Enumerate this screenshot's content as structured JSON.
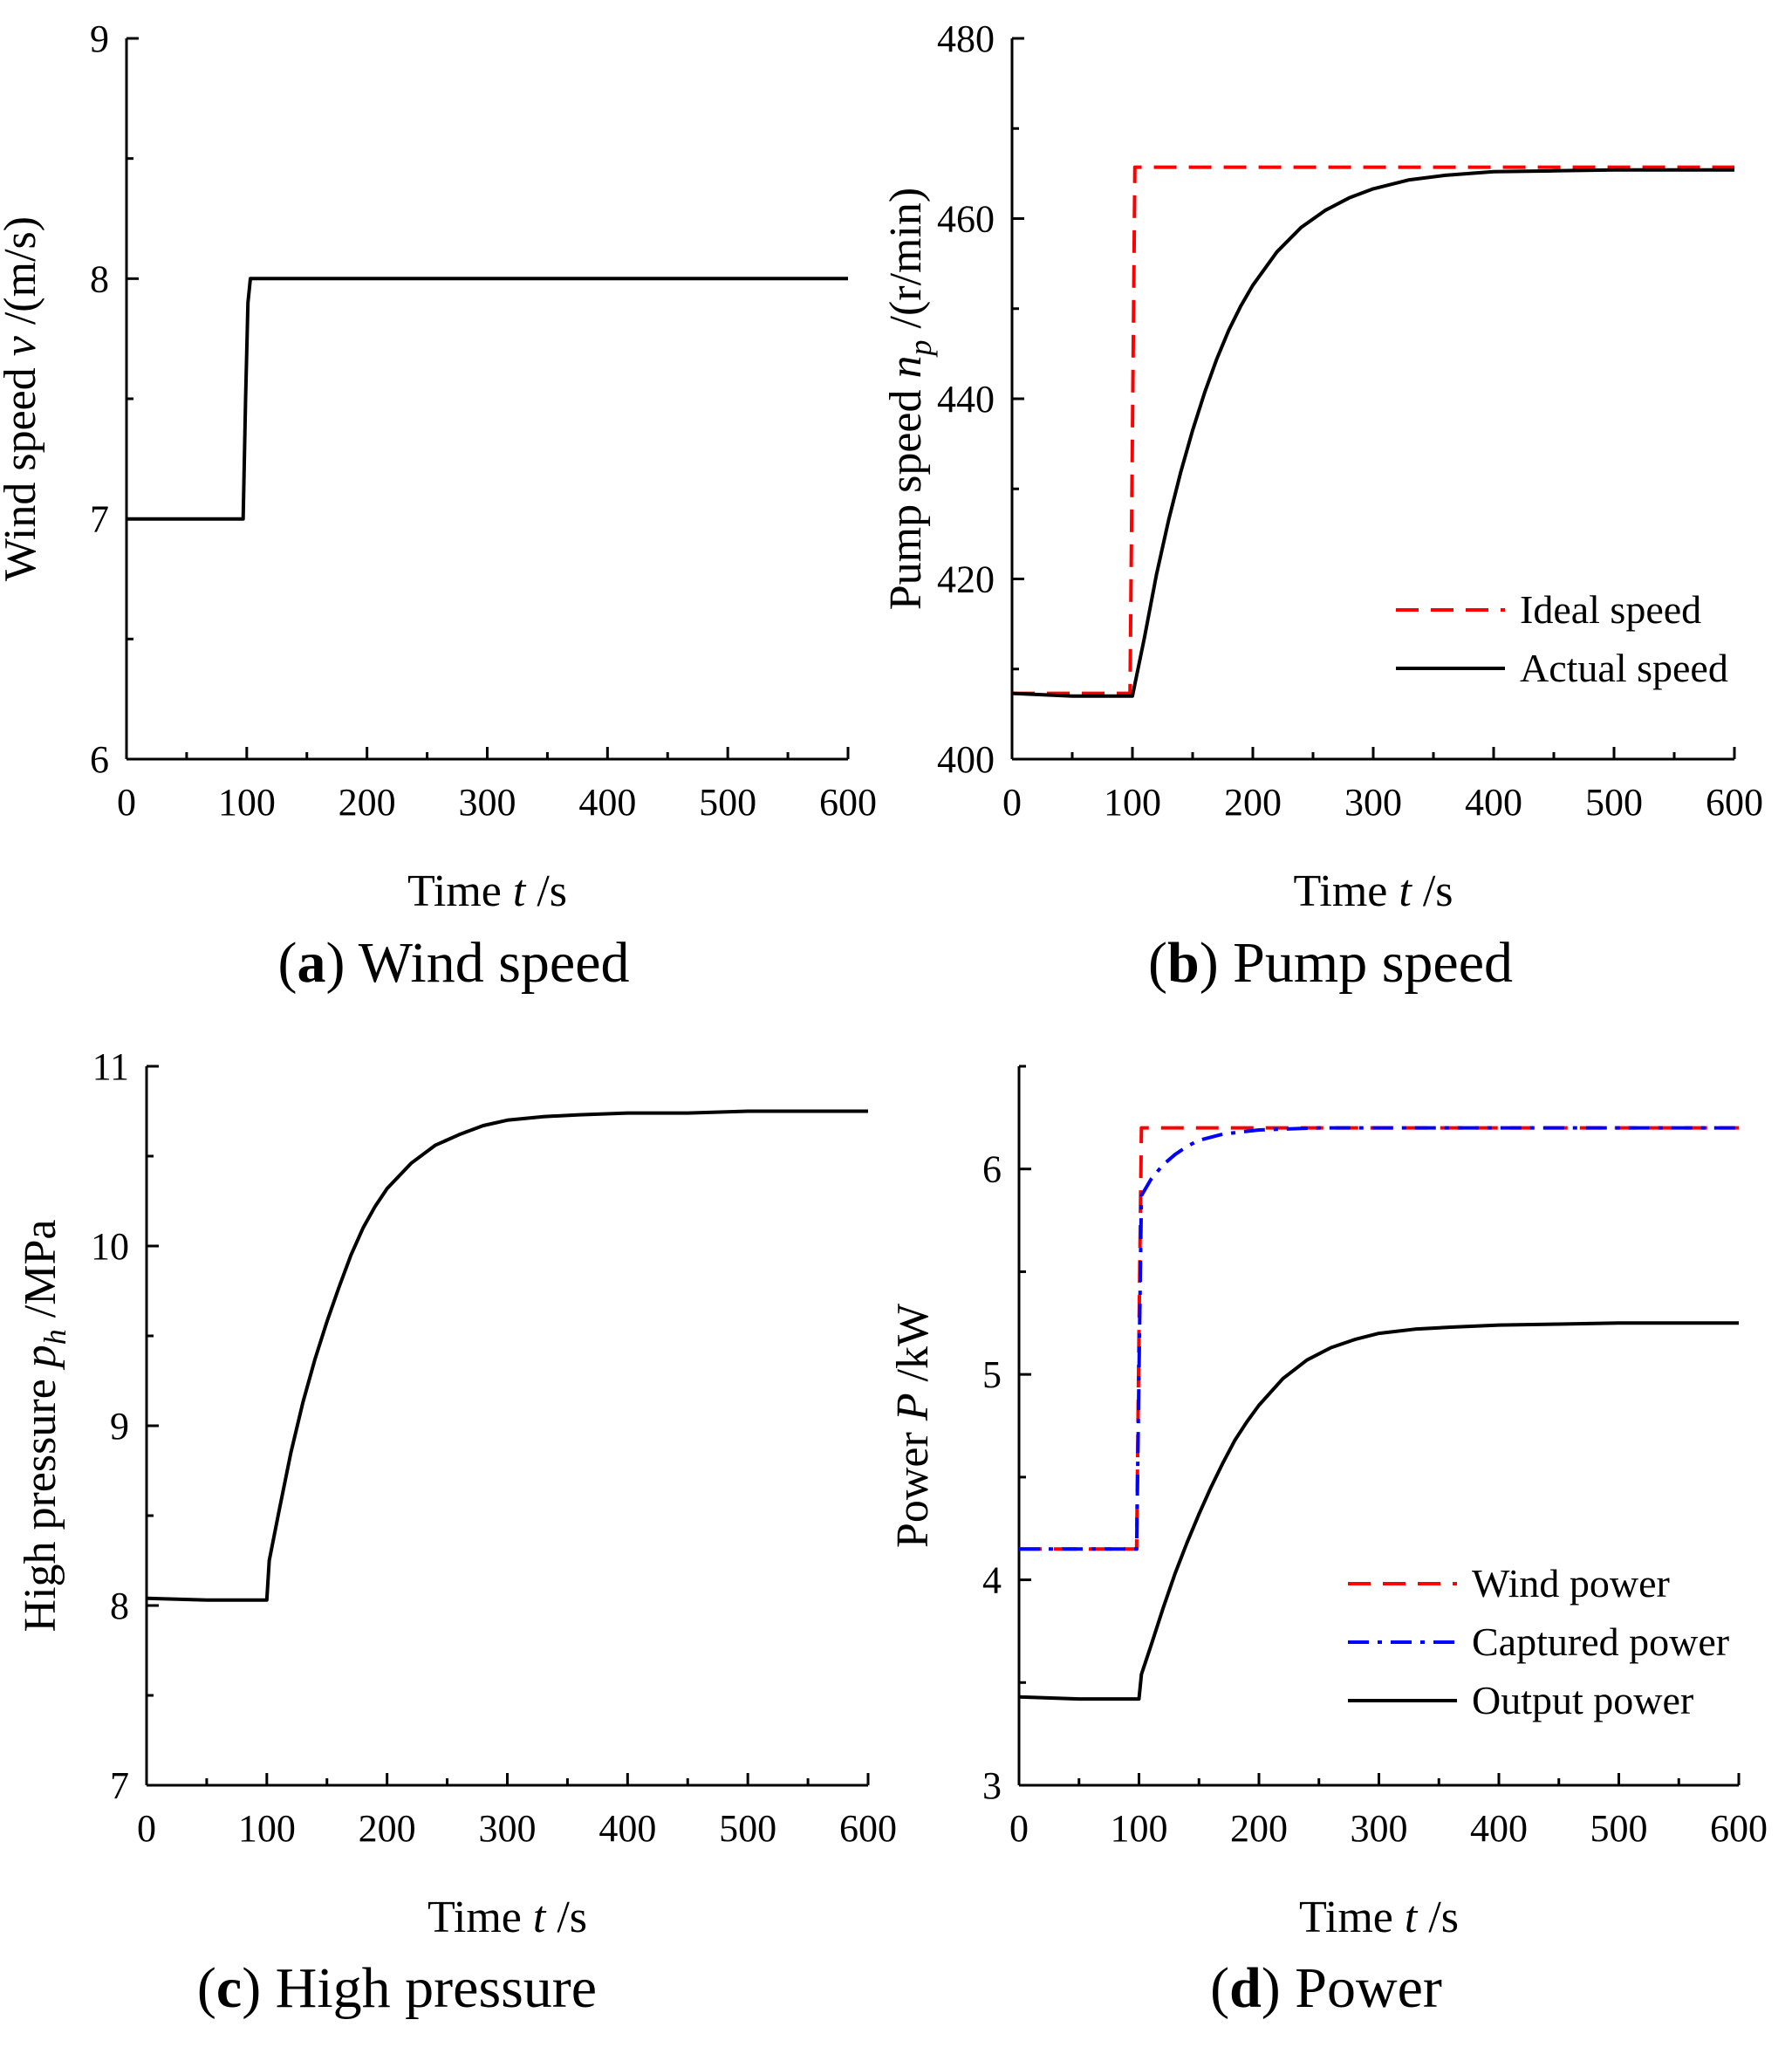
{
  "chart_data": [
    {
      "id": "a",
      "type": "line",
      "caption_letter": "a",
      "caption_text": "Wind speed",
      "xlabel": {
        "pre": "Time ",
        "var": "t",
        "post": " /s"
      },
      "ylabel": {
        "pre": "Wind speed ",
        "var": "v",
        "sub": "",
        "post": " /(m/s)"
      },
      "xlim": [
        0,
        600
      ],
      "ylim": [
        6,
        9
      ],
      "xticks": [
        0,
        100,
        200,
        300,
        400,
        500,
        600
      ],
      "yticks": [
        6,
        7,
        8,
        9
      ],
      "xtick_labels": [
        "0",
        "100",
        "200",
        "300",
        "400",
        "500",
        "600"
      ],
      "ytick_labels": [
        "6",
        "7",
        "8",
        "9"
      ],
      "legend": [],
      "series": [
        {
          "name": "Wind speed",
          "color": "#000000",
          "dash": "solid",
          "x": [
            0,
            97,
            99,
            101,
            103,
            600
          ],
          "y": [
            7.0,
            7.0,
            7.5,
            7.9,
            8.0,
            8.0
          ]
        }
      ]
    },
    {
      "id": "b",
      "type": "line",
      "caption_letter": "b",
      "caption_text": "Pump speed",
      "xlabel": {
        "pre": "Time ",
        "var": "t",
        "post": " /s"
      },
      "ylabel": {
        "pre": "Pump speed ",
        "var": "n",
        "sub": "p",
        "post": " /(r/min)"
      },
      "xlim": [
        0,
        600
      ],
      "ylim": [
        400,
        480
      ],
      "xticks": [
        0,
        100,
        200,
        300,
        400,
        500,
        600
      ],
      "yticks": [
        400,
        420,
        440,
        460,
        480
      ],
      "xtick_labels": [
        "0",
        "100",
        "200",
        "300",
        "400",
        "500",
        "600"
      ],
      "ytick_labels": [
        "400",
        "420",
        "440",
        "460",
        "480"
      ],
      "legend": [
        "Ideal speed",
        "Actual speed"
      ],
      "series": [
        {
          "name": "Ideal speed",
          "color": "#ff0000",
          "dash": "dashed",
          "x": [
            0,
            98,
            100,
            102,
            600
          ],
          "y": [
            407.3,
            407.3,
            436,
            465.7,
            465.7
          ]
        },
        {
          "name": "Actual speed",
          "color": "#000000",
          "dash": "solid",
          "x": [
            0,
            50,
            100,
            110,
            120,
            130,
            140,
            150,
            160,
            170,
            180,
            190,
            200,
            220,
            240,
            260,
            280,
            300,
            330,
            360,
            400,
            450,
            500,
            550,
            600
          ],
          "y": [
            407.3,
            407.0,
            407.0,
            413.5,
            420.5,
            426.5,
            431.8,
            436.5,
            440.7,
            444.4,
            447.6,
            450.3,
            452.6,
            456.3,
            459.0,
            460.9,
            462.3,
            463.3,
            464.3,
            464.8,
            465.2,
            465.3,
            465.4,
            465.4,
            465.4
          ]
        }
      ]
    },
    {
      "id": "c",
      "type": "line",
      "caption_letter": "c",
      "caption_text": "High pressure",
      "xlabel": {
        "pre": "Time ",
        "var": "t",
        "post": " /s"
      },
      "ylabel": {
        "pre": "High pressure ",
        "var": "p",
        "sub": "h",
        "post": " /MPa"
      },
      "xlim": [
        0,
        600
      ],
      "ylim": [
        7,
        11
      ],
      "xticks": [
        0,
        100,
        200,
        300,
        400,
        500,
        600
      ],
      "yticks": [
        7,
        8,
        9,
        10,
        11
      ],
      "xtick_labels": [
        "0",
        "100",
        "200",
        "300",
        "400",
        "500",
        "600"
      ],
      "ytick_labels": [
        "7",
        "8",
        "9",
        "10",
        "11"
      ],
      "legend": [],
      "series": [
        {
          "name": "High pressure",
          "color": "#000000",
          "dash": "solid",
          "x": [
            0,
            50,
            100,
            102,
            110,
            120,
            130,
            140,
            150,
            160,
            170,
            180,
            190,
            200,
            220,
            240,
            260,
            280,
            300,
            330,
            360,
            400,
            450,
            500,
            550,
            600
          ],
          "y": [
            8.04,
            8.03,
            8.03,
            8.25,
            8.52,
            8.85,
            9.13,
            9.37,
            9.58,
            9.77,
            9.95,
            10.1,
            10.22,
            10.32,
            10.46,
            10.56,
            10.62,
            10.67,
            10.7,
            10.72,
            10.73,
            10.74,
            10.74,
            10.75,
            10.75,
            10.75
          ]
        }
      ]
    },
    {
      "id": "d",
      "type": "line",
      "caption_letter": "d",
      "caption_text": "Power",
      "xlabel": {
        "pre": "Time ",
        "var": "t",
        "post": " /s"
      },
      "ylabel": {
        "pre": "Power ",
        "var": "P",
        "sub": "",
        "post": " /kW"
      },
      "xlim": [
        0,
        600
      ],
      "ylim": [
        3,
        6.5
      ],
      "xticks": [
        0,
        100,
        200,
        300,
        400,
        500,
        600
      ],
      "yticks": [
        3,
        4,
        5,
        6
      ],
      "xtick_labels": [
        "0",
        "100",
        "200",
        "300",
        "400",
        "500",
        "600"
      ],
      "ytick_labels": [
        "3",
        "4",
        "5",
        "6"
      ],
      "legend": [
        "Wind power",
        "Captured power",
        "Output power"
      ],
      "series": [
        {
          "name": "Wind power",
          "color": "#ff0000",
          "dash": "dashed",
          "x": [
            0,
            98,
            100,
            102,
            600
          ],
          "y": [
            4.15,
            4.15,
            5.2,
            6.2,
            6.2
          ]
        },
        {
          "name": "Captured power",
          "color": "#0000ff",
          "dash": "dashdot",
          "x": [
            0,
            98,
            100,
            102,
            110,
            120,
            130,
            140,
            150,
            170,
            200,
            250,
            300,
            600
          ],
          "y": [
            4.15,
            4.15,
            5.0,
            5.87,
            5.95,
            6.02,
            6.07,
            6.11,
            6.14,
            6.17,
            6.19,
            6.2,
            6.2,
            6.2
          ]
        },
        {
          "name": "Output power",
          "color": "#000000",
          "dash": "solid",
          "x": [
            0,
            50,
            100,
            102,
            110,
            120,
            130,
            140,
            150,
            160,
            170,
            180,
            190,
            200,
            220,
            240,
            260,
            280,
            300,
            330,
            360,
            400,
            450,
            500,
            550,
            600
          ],
          "y": [
            3.43,
            3.42,
            3.42,
            3.54,
            3.68,
            3.86,
            4.03,
            4.18,
            4.32,
            4.45,
            4.57,
            4.68,
            4.77,
            4.85,
            4.98,
            5.07,
            5.13,
            5.17,
            5.2,
            5.22,
            5.23,
            5.24,
            5.245,
            5.25,
            5.25,
            5.25
          ]
        }
      ]
    }
  ]
}
